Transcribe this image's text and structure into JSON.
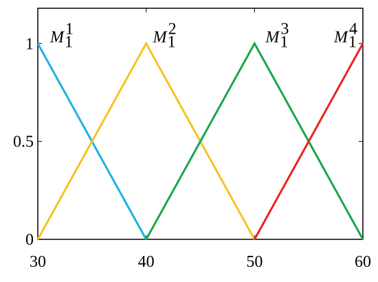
{
  "chart_data": {
    "type": "line",
    "xlim": [
      30,
      60
    ],
    "xticks": [
      30,
      40,
      50,
      60
    ],
    "ylim": [
      0,
      1.18
    ],
    "yticks": [
      0,
      0.5,
      1
    ],
    "series": [
      {
        "label": {
          "base": "M",
          "sub": "1",
          "sup": "1"
        },
        "color": "#1db2e6",
        "x": [
          30,
          40
        ],
        "values": [
          1,
          0
        ]
      },
      {
        "label": {
          "base": "M",
          "sub": "1",
          "sup": "2"
        },
        "color": "#f7c322",
        "x": [
          30,
          40,
          50
        ],
        "values": [
          0,
          1,
          0
        ]
      },
      {
        "label": {
          "base": "M",
          "sub": "1",
          "sup": "3"
        },
        "color": "#19a64a",
        "x": [
          40,
          50,
          60
        ],
        "values": [
          0,
          1,
          0
        ]
      },
      {
        "label": {
          "base": "M",
          "sub": "1",
          "sup": "4"
        },
        "color": "#e8241d",
        "x": [
          50,
          60
        ],
        "values": [
          0,
          1
        ]
      }
    ]
  }
}
